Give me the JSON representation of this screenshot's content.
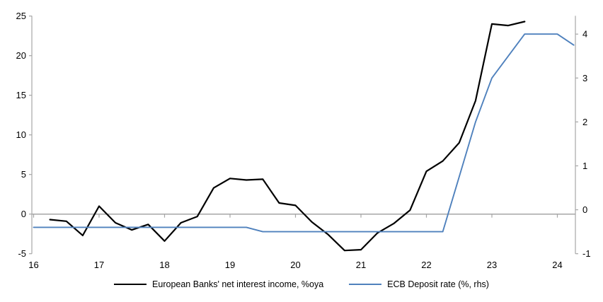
{
  "chart_data": {
    "type": "line",
    "title": "",
    "legend_position": "bottom-center",
    "grid": "zero-line-only",
    "colors": {
      "axis": "#a6a6a6",
      "text": "#000000",
      "background": "#ffffff"
    },
    "x_axis": {
      "ticks": [
        16,
        17,
        18,
        19,
        20,
        21,
        22,
        23,
        24
      ],
      "min": 16,
      "max": 24.6
    },
    "left_axis": {
      "ticks": [
        -5,
        0,
        5,
        10,
        15,
        20,
        25
      ],
      "min": -5,
      "max": 25
    },
    "right_axis": {
      "ticks": [
        -1,
        0,
        1,
        2,
        3,
        4
      ],
      "min": -1,
      "max": 4.4
    },
    "series": [
      {
        "name": "European Banks' net interest income, %oya",
        "color": "#000000",
        "axis": "left",
        "points": [
          [
            16.25,
            -0.7
          ],
          [
            16.5,
            -0.9
          ],
          [
            16.75,
            -2.7
          ],
          [
            17,
            1.0
          ],
          [
            17.25,
            -1.1
          ],
          [
            17.5,
            -2.0
          ],
          [
            17.75,
            -1.3
          ],
          [
            18,
            -3.4
          ],
          [
            18.25,
            -1.1
          ],
          [
            18.5,
            -0.3
          ],
          [
            18.75,
            3.3
          ],
          [
            19,
            4.5
          ],
          [
            19.25,
            4.3
          ],
          [
            19.5,
            4.4
          ],
          [
            19.75,
            1.4
          ],
          [
            20,
            1.1
          ],
          [
            20.25,
            -1.0
          ],
          [
            20.5,
            -2.6
          ],
          [
            20.75,
            -4.6
          ],
          [
            21,
            -4.5
          ],
          [
            21.25,
            -2.4
          ],
          [
            21.5,
            -1.2
          ],
          [
            21.75,
            0.5
          ],
          [
            22,
            5.4
          ],
          [
            22.25,
            6.7
          ],
          [
            22.5,
            9.0
          ],
          [
            22.75,
            14.3
          ],
          [
            23,
            24.0
          ],
          [
            23.25,
            23.8
          ],
          [
            23.5,
            24.3
          ]
        ]
      },
      {
        "name": "ECB Deposit rate (%, rhs)",
        "color": "#4f81bd",
        "axis": "right",
        "points": [
          [
            16,
            -0.4
          ],
          [
            16.25,
            -0.4
          ],
          [
            16.5,
            -0.4
          ],
          [
            16.75,
            -0.4
          ],
          [
            17,
            -0.4
          ],
          [
            17.25,
            -0.4
          ],
          [
            17.5,
            -0.4
          ],
          [
            17.75,
            -0.4
          ],
          [
            18,
            -0.4
          ],
          [
            18.25,
            -0.4
          ],
          [
            18.5,
            -0.4
          ],
          [
            18.75,
            -0.4
          ],
          [
            19,
            -0.4
          ],
          [
            19.25,
            -0.4
          ],
          [
            19.5,
            -0.5
          ],
          [
            19.75,
            -0.5
          ],
          [
            20,
            -0.5
          ],
          [
            20.25,
            -0.5
          ],
          [
            20.5,
            -0.5
          ],
          [
            20.75,
            -0.5
          ],
          [
            21,
            -0.5
          ],
          [
            21.25,
            -0.5
          ],
          [
            21.5,
            -0.5
          ],
          [
            21.75,
            -0.5
          ],
          [
            22,
            -0.5
          ],
          [
            22.25,
            -0.5
          ],
          [
            22.5,
            0.75
          ],
          [
            22.75,
            2.0
          ],
          [
            23,
            3.0
          ],
          [
            23.25,
            3.5
          ],
          [
            23.5,
            4.0
          ],
          [
            23.75,
            4.0
          ],
          [
            24,
            4.0
          ],
          [
            24.25,
            3.75
          ]
        ]
      }
    ]
  },
  "legend": {
    "items": [
      {
        "label": "European Banks' net interest income, %oya"
      },
      {
        "label": "ECB Deposit rate (%, rhs)"
      }
    ]
  }
}
